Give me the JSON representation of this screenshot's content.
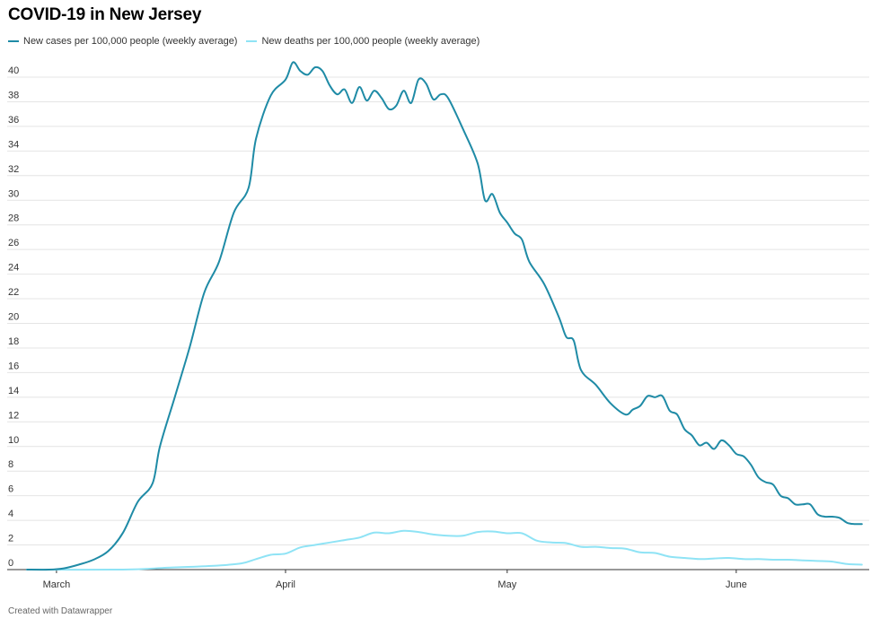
{
  "title": "COVID-19 in New Jersey",
  "footer": "Created with Datawrapper",
  "legend": {
    "cases_label": "New cases per 100,000 people (weekly average)",
    "deaths_label": "New deaths per 100,000 people (weekly average)"
  },
  "chart_data": {
    "type": "line",
    "title": "COVID-19 in New Jersey",
    "xlabel": "",
    "ylabel": "",
    "x_unit": "days since Feb 29, 2020",
    "xlim": [
      -3,
      111
    ],
    "ylim": [
      0,
      40
    ],
    "yticks": [
      0,
      2,
      4,
      6,
      8,
      10,
      12,
      14,
      16,
      18,
      20,
      22,
      24,
      26,
      28,
      30,
      32,
      34,
      36,
      38,
      40
    ],
    "xticks": [
      {
        "label": "March",
        "day": 1
      },
      {
        "label": "April",
        "day": 32
      },
      {
        "label": "May",
        "day": 62
      },
      {
        "label": "June",
        "day": 93
      }
    ],
    "grid": true,
    "series": [
      {
        "name": "New cases per 100,000 people (weekly average)",
        "color": "#1f8ba6",
        "points": [
          [
            -3,
            0
          ],
          [
            0,
            0
          ],
          [
            2,
            0.1
          ],
          [
            4,
            0.4
          ],
          [
            6,
            0.8
          ],
          [
            8,
            1.5
          ],
          [
            10,
            3
          ],
          [
            12,
            5.5
          ],
          [
            14,
            7
          ],
          [
            15,
            10
          ],
          [
            17,
            14
          ],
          [
            19,
            18
          ],
          [
            21,
            22.5
          ],
          [
            23,
            25
          ],
          [
            25,
            29
          ],
          [
            27,
            31
          ],
          [
            28,
            35
          ],
          [
            30,
            38.5
          ],
          [
            32,
            39.8
          ],
          [
            33,
            41.2
          ],
          [
            34,
            40.5
          ],
          [
            35,
            40.2
          ],
          [
            36,
            40.8
          ],
          [
            37,
            40.5
          ],
          [
            38,
            39.3
          ],
          [
            39,
            38.6
          ],
          [
            40,
            39
          ],
          [
            41,
            37.9
          ],
          [
            42,
            39.2
          ],
          [
            43,
            38.1
          ],
          [
            44,
            38.9
          ],
          [
            45,
            38.3
          ],
          [
            46,
            37.4
          ],
          [
            47,
            37.7
          ],
          [
            48,
            38.9
          ],
          [
            49,
            37.9
          ],
          [
            50,
            39.8
          ],
          [
            51,
            39.5
          ],
          [
            52,
            38.2
          ],
          [
            53,
            38.6
          ],
          [
            54,
            38.3
          ],
          [
            56,
            35.8
          ],
          [
            58,
            33
          ],
          [
            59,
            30
          ],
          [
            60,
            30.5
          ],
          [
            61,
            29
          ],
          [
            62,
            28.2
          ],
          [
            63,
            27.3
          ],
          [
            64,
            26.8
          ],
          [
            65,
            25
          ],
          [
            67,
            23.2
          ],
          [
            69,
            20.5
          ],
          [
            70,
            18.9
          ],
          [
            71,
            18.6
          ],
          [
            72,
            16.2
          ],
          [
            74,
            15
          ],
          [
            76,
            13.5
          ],
          [
            78,
            12.6
          ],
          [
            79,
            13
          ],
          [
            80,
            13.3
          ],
          [
            81,
            14.1
          ],
          [
            82,
            14.0
          ],
          [
            83,
            14.1
          ],
          [
            84,
            12.9
          ],
          [
            85,
            12.6
          ],
          [
            86,
            11.4
          ],
          [
            87,
            10.9
          ],
          [
            88,
            10.1
          ],
          [
            89,
            10.3
          ],
          [
            90,
            9.8
          ],
          [
            91,
            10.5
          ],
          [
            92,
            10.1
          ],
          [
            93,
            9.4
          ],
          [
            94,
            9.2
          ],
          [
            95,
            8.5
          ],
          [
            96,
            7.5
          ],
          [
            97,
            7.1
          ],
          [
            98,
            6.9
          ],
          [
            99,
            6
          ],
          [
            100,
            5.8
          ],
          [
            101,
            5.3
          ],
          [
            102,
            5.3
          ],
          [
            103,
            5.3
          ],
          [
            104,
            4.5
          ],
          [
            105,
            4.3
          ],
          [
            106,
            4.3
          ],
          [
            107,
            4.2
          ],
          [
            108,
            3.8
          ],
          [
            109,
            3.7
          ],
          [
            110,
            3.7
          ]
        ]
      },
      {
        "name": "New deaths per 100,000 people (weekly average)",
        "color": "#8fe3f5",
        "points": [
          [
            -3,
            0
          ],
          [
            10,
            0
          ],
          [
            16,
            0.15
          ],
          [
            22,
            0.3
          ],
          [
            26,
            0.5
          ],
          [
            28,
            0.85
          ],
          [
            30,
            1.2
          ],
          [
            32,
            1.3
          ],
          [
            34,
            1.8
          ],
          [
            36,
            2.0
          ],
          [
            38,
            2.2
          ],
          [
            40,
            2.4
          ],
          [
            42,
            2.6
          ],
          [
            44,
            3.0
          ],
          [
            46,
            2.95
          ],
          [
            48,
            3.15
          ],
          [
            50,
            3.05
          ],
          [
            52,
            2.85
          ],
          [
            54,
            2.75
          ],
          [
            56,
            2.75
          ],
          [
            58,
            3.05
          ],
          [
            60,
            3.1
          ],
          [
            62,
            2.95
          ],
          [
            64,
            2.95
          ],
          [
            66,
            2.35
          ],
          [
            68,
            2.2
          ],
          [
            70,
            2.15
          ],
          [
            72,
            1.85
          ],
          [
            74,
            1.85
          ],
          [
            76,
            1.75
          ],
          [
            78,
            1.7
          ],
          [
            80,
            1.4
          ],
          [
            82,
            1.35
          ],
          [
            84,
            1.05
          ],
          [
            86,
            0.95
          ],
          [
            88,
            0.85
          ],
          [
            90,
            0.9
          ],
          [
            92,
            0.95
          ],
          [
            94,
            0.85
          ],
          [
            96,
            0.85
          ],
          [
            98,
            0.8
          ],
          [
            100,
            0.8
          ],
          [
            102,
            0.75
          ],
          [
            104,
            0.7
          ],
          [
            106,
            0.65
          ],
          [
            108,
            0.45
          ],
          [
            110,
            0.4
          ]
        ]
      }
    ]
  }
}
